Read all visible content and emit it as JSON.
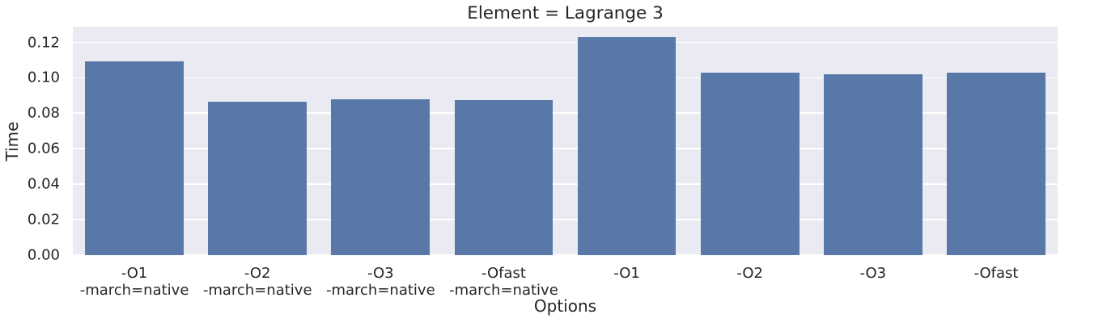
{
  "chart_data": {
    "type": "bar",
    "title": "Element = Lagrange 3",
    "xlabel": "Options",
    "ylabel": "Time",
    "categories": [
      [
        "-O1",
        "-march=native"
      ],
      [
        "-O2",
        "-march=native"
      ],
      [
        "-O3",
        "-march=native"
      ],
      [
        "-Ofast",
        "-march=native"
      ],
      [
        "-O1"
      ],
      [
        "-O2"
      ],
      [
        "-O3"
      ],
      [
        "-Ofast"
      ]
    ],
    "values": [
      0.1095,
      0.0865,
      0.088,
      0.0875,
      0.123,
      0.103,
      0.102,
      0.103
    ],
    "yticks": [
      0.0,
      0.02,
      0.04,
      0.06,
      0.08,
      0.1,
      0.12
    ],
    "ytick_labels": [
      "0.00",
      "0.02",
      "0.04",
      "0.06",
      "0.08",
      "0.10",
      "0.12"
    ],
    "ylim": [
      0,
      0.1289
    ],
    "grid": true,
    "legend": "none",
    "bar_width_fraction": 0.8,
    "colors": {
      "bar": "#5878a8",
      "plot_background": "#eaeaf2",
      "grid_line": "#ffffff",
      "text": "#262626",
      "figure_background": "#ffffff"
    }
  }
}
